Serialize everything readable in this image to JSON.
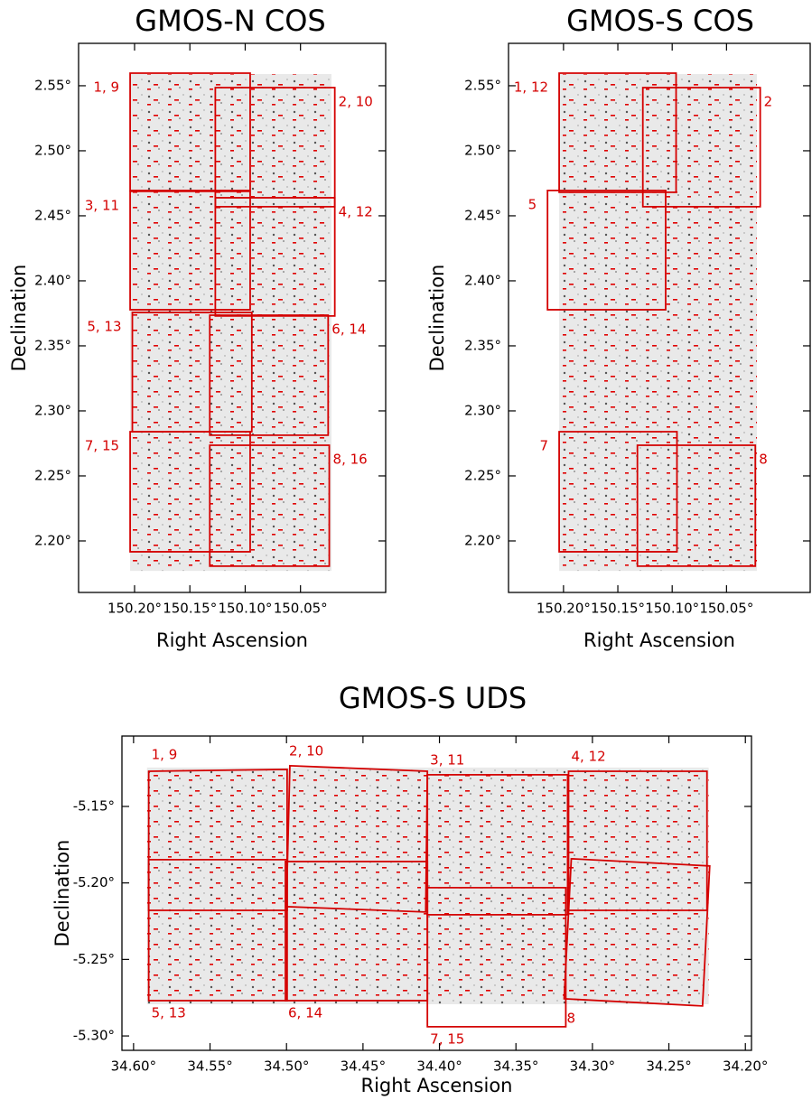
{
  "chart_data": [
    {
      "type": "footprint",
      "title": "GMOS-N COS",
      "xlabel": "Right Ascension",
      "ylabel": "Declination",
      "xlim": [
        150.2506,
        149.973
      ],
      "ylim": [
        2.1604,
        2.5826
      ],
      "xticks": [
        {
          "value": 150.2,
          "label": "150.20°"
        },
        {
          "value": 150.15,
          "label": "150.15°"
        },
        {
          "value": 150.1,
          "label": "150.10°"
        },
        {
          "value": 150.05,
          "label": "150.05°"
        }
      ],
      "yticks": [
        {
          "value": 2.2,
          "label": "2.20°"
        },
        {
          "value": 2.25,
          "label": "2.25°"
        },
        {
          "value": 2.3,
          "label": "2.30°"
        },
        {
          "value": 2.35,
          "label": "2.35°"
        },
        {
          "value": 2.4,
          "label": "2.40°"
        },
        {
          "value": 2.45,
          "label": "2.45°"
        },
        {
          "value": 2.5,
          "label": "2.50°"
        },
        {
          "value": 2.55,
          "label": "2.55°"
        }
      ],
      "color": "#d40000",
      "image_extent": [
        [
          150.204,
          2.559
        ],
        [
          150.022,
          2.559
        ],
        [
          150.022,
          2.177
        ],
        [
          150.204,
          2.177
        ]
      ],
      "fields": [
        {
          "label": "1, 9",
          "corners": [
            [
              150.204,
              2.5597
            ],
            [
              150.0955,
              2.5597
            ],
            [
              150.0955,
              2.4695
            ],
            [
              150.204,
              2.4695
            ]
          ]
        },
        {
          "label": "2, 10",
          "corners": [
            [
              150.127,
              2.5486
            ],
            [
              150.019,
              2.5486
            ],
            [
              150.019,
              2.457
            ],
            [
              150.127,
              2.457
            ]
          ]
        },
        {
          "label": "3, 11",
          "corners": [
            [
              150.204,
              2.4688
            ],
            [
              150.0955,
              2.4688
            ],
            [
              150.0955,
              2.3778
            ],
            [
              150.204,
              2.3778
            ]
          ]
        },
        {
          "label": "4, 12",
          "corners": [
            [
              150.127,
              2.4639
            ],
            [
              150.019,
              2.4639
            ],
            [
              150.019,
              2.373
            ],
            [
              150.127,
              2.373
            ]
          ]
        },
        {
          "label": "5, 13",
          "corners": [
            [
              150.202,
              2.3757
            ],
            [
              150.094,
              2.3757
            ],
            [
              150.094,
              2.284
            ],
            [
              150.202,
              2.284
            ]
          ]
        },
        {
          "label": "6, 14",
          "corners": [
            [
              150.132,
              2.3736
            ],
            [
              150.025,
              2.3736
            ],
            [
              150.025,
              2.2813
            ],
            [
              150.132,
              2.2813
            ]
          ]
        },
        {
          "label": "7, 15",
          "corners": [
            [
              150.204,
              2.284
            ],
            [
              150.0955,
              2.284
            ],
            [
              150.0955,
              2.1917
            ],
            [
              150.204,
              2.1917
            ]
          ]
        },
        {
          "label": "8, 16",
          "corners": [
            [
              150.132,
              2.2736
            ],
            [
              150.024,
              2.2736
            ],
            [
              150.024,
              2.1806
            ],
            [
              150.132,
              2.1806
            ]
          ]
        }
      ]
    },
    {
      "type": "footprint",
      "title": "GMOS-S COS",
      "xlabel": "Right Ascension",
      "ylabel": "Declination",
      "xlim": [
        150.2506,
        149.973
      ],
      "ylim": [
        2.1604,
        2.5826
      ],
      "xticks": [
        {
          "value": 150.2,
          "label": "150.20°"
        },
        {
          "value": 150.15,
          "label": "150.15°"
        },
        {
          "value": 150.1,
          "label": "150.10°"
        },
        {
          "value": 150.05,
          "label": "150.05°"
        }
      ],
      "yticks": [
        {
          "value": 2.2,
          "label": "2.20°"
        },
        {
          "value": 2.25,
          "label": "2.25°"
        },
        {
          "value": 2.3,
          "label": "2.30°"
        },
        {
          "value": 2.35,
          "label": "2.35°"
        },
        {
          "value": 2.4,
          "label": "2.40°"
        },
        {
          "value": 2.45,
          "label": "2.45°"
        },
        {
          "value": 2.5,
          "label": "2.50°"
        },
        {
          "value": 2.55,
          "label": "2.55°"
        }
      ],
      "color": "#d40000",
      "image_extent": [
        [
          150.204,
          2.559
        ],
        [
          150.022,
          2.559
        ],
        [
          150.022,
          2.177
        ],
        [
          150.204,
          2.177
        ]
      ],
      "fields": [
        {
          "label": "1, 12",
          "corners": [
            [
              150.204,
              2.5597
            ],
            [
              150.0964,
              2.5597
            ],
            [
              150.0964,
              2.4681
            ],
            [
              150.204,
              2.4681
            ]
          ]
        },
        {
          "label": "2",
          "corners": [
            [
              150.127,
              2.5486
            ],
            [
              150.019,
              2.5486
            ],
            [
              150.019,
              2.457
            ],
            [
              150.127,
              2.457
            ]
          ]
        },
        {
          "label": "5",
          "corners": [
            [
              150.2147,
              2.4695
            ],
            [
              150.106,
              2.4695
            ],
            [
              150.106,
              2.3778
            ],
            [
              150.2147,
              2.3778
            ]
          ]
        },
        {
          "label": "7",
          "corners": [
            [
              150.204,
              2.284
            ],
            [
              150.0956,
              2.284
            ],
            [
              150.0956,
              2.1917
            ],
            [
              150.204,
              2.1917
            ]
          ]
        },
        {
          "label": "8",
          "corners": [
            [
              150.132,
              2.2736
            ],
            [
              150.0235,
              2.2736
            ],
            [
              150.0235,
              2.1806
            ],
            [
              150.132,
              2.1806
            ]
          ]
        }
      ]
    },
    {
      "type": "footprint",
      "title": "GMOS-S UDS",
      "xlabel": "Right Ascension",
      "ylabel": "Declination",
      "xlim": [
        34.6076,
        34.196
      ],
      "ylim": [
        -5.3094,
        -5.104
      ],
      "xticks": [
        {
          "value": 34.6,
          "label": "34.60°"
        },
        {
          "value": 34.55,
          "label": "34.55°"
        },
        {
          "value": 34.5,
          "label": "34.50°"
        },
        {
          "value": 34.45,
          "label": "34.45°"
        },
        {
          "value": 34.4,
          "label": "34.40°"
        },
        {
          "value": 34.35,
          "label": "34.35°"
        },
        {
          "value": 34.3,
          "label": "34.30°"
        },
        {
          "value": 34.25,
          "label": "34.25°"
        },
        {
          "value": 34.2,
          "label": "34.20°"
        }
      ],
      "yticks": [
        {
          "value": -5.3,
          "label": "-5.30°"
        },
        {
          "value": -5.25,
          "label": "-5.25°"
        },
        {
          "value": -5.2,
          "label": "-5.20°"
        },
        {
          "value": -5.15,
          "label": "-5.15°"
        }
      ],
      "color": "#d40000",
      "image_extent": [
        [
          34.5912,
          -5.1246
        ],
        [
          34.224,
          -5.1246
        ],
        [
          34.224,
          -5.2793
        ],
        [
          34.5912,
          -5.2793
        ]
      ],
      "fields": [
        {
          "label": "1, 9",
          "corners": [
            [
              34.5901,
              -5.127
            ],
            [
              34.4996,
              -5.1258
            ],
            [
              34.4996,
              -5.2179
            ],
            [
              34.5901,
              -5.2179
            ]
          ]
        },
        {
          "label": "2, 10",
          "corners": [
            [
              34.4978,
              -5.1234
            ],
            [
              34.4079,
              -5.127
            ],
            [
              34.409,
              -5.219
            ],
            [
              34.5001,
              -5.2155
            ]
          ]
        },
        {
          "label": "3, 11",
          "corners": [
            [
              34.4079,
              -5.1293
            ],
            [
              34.3162,
              -5.1293
            ],
            [
              34.3162,
              -5.2208
            ],
            [
              34.4079,
              -5.2208
            ]
          ]
        },
        {
          "label": "4, 12",
          "corners": [
            [
              34.3156,
              -5.127
            ],
            [
              34.2251,
              -5.127
            ],
            [
              34.2251,
              -5.2179
            ],
            [
              34.3156,
              -5.2179
            ]
          ]
        },
        {
          "label": "5, 13",
          "corners": [
            [
              34.5901,
              -5.1848
            ],
            [
              34.4996,
              -5.1848
            ],
            [
              34.4996,
              -5.2769
            ],
            [
              34.5901,
              -5.2769
            ]
          ]
        },
        {
          "label": "6, 14",
          "corners": [
            [
              34.5007,
              -5.186
            ],
            [
              34.4079,
              -5.186
            ],
            [
              34.4079,
              -5.2769
            ],
            [
              34.5007,
              -5.2769
            ]
          ]
        },
        {
          "label": "7, 15",
          "corners": [
            [
              34.4079,
              -5.2031
            ],
            [
              34.3174,
              -5.2031
            ],
            [
              34.3174,
              -5.294
            ],
            [
              34.4079,
              -5.294
            ]
          ]
        },
        {
          "label": "8",
          "corners": [
            [
              34.3138,
              -5.1842
            ],
            [
              34.2233,
              -5.1889
            ],
            [
              34.228,
              -5.2804
            ],
            [
              34.3185,
              -5.2757
            ]
          ]
        }
      ]
    }
  ]
}
